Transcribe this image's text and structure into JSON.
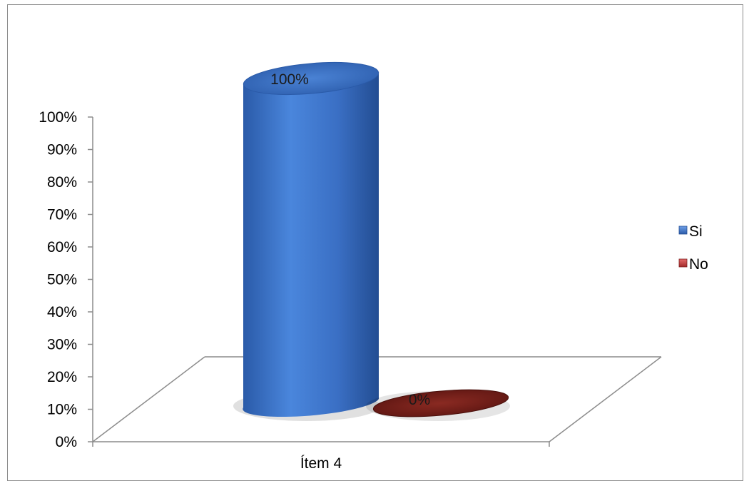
{
  "chart_data": {
    "type": "bar",
    "style": "3d-cylinder",
    "categories": [
      "Ítem 4"
    ],
    "series": [
      {
        "name": "Si",
        "values": [
          100
        ],
        "color": "#3a6fc4"
      },
      {
        "name": "No",
        "values": [
          0
        ],
        "color": "#7a1e1e"
      }
    ],
    "data_labels": [
      "100%",
      "0%"
    ],
    "y_ticks": [
      "0%",
      "10%",
      "20%",
      "30%",
      "40%",
      "50%",
      "60%",
      "70%",
      "80%",
      "90%",
      "100%"
    ],
    "ylim": [
      0,
      100
    ],
    "legend_position": "right",
    "grid": false
  }
}
